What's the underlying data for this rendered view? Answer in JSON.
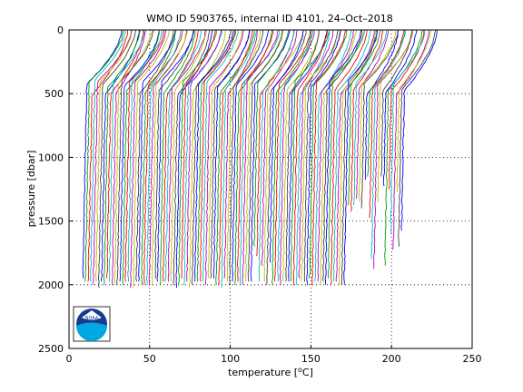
{
  "chart_data": {
    "type": "line",
    "title": "WMO ID 5903765, internal ID 4101, 24–Oct–2018",
    "xlabel": "temperature [",
    "xlabel_unit": "o",
    "xlabel_unit_tail": "C]",
    "ylabel": "pressure [dbar]",
    "xlim": [
      0,
      250
    ],
    "ylim": [
      0,
      2500
    ],
    "y_reversed": true,
    "x_ticks": [
      "0",
      "50",
      "100",
      "150",
      "200",
      "250"
    ],
    "y_ticks": [
      "0",
      "500",
      "1000",
      "1500",
      "2000",
      "2500"
    ],
    "grid": "dotted",
    "legend": "none",
    "logo": "NOAA",
    "series_palette": [
      "#0000ff",
      "#00a000",
      "#ff0000",
      "#00bfbf",
      "#bf00bf",
      "#bfbf00",
      "#404040"
    ],
    "profiles": {
      "description_count": 120,
      "x_offset_first": 8,
      "x_offset_last": 205,
      "surface_temperature_extra": 20,
      "thermocline_pressure": 450,
      "bottom_pressure": 2000,
      "deep_gradient": -2.5
    }
  }
}
